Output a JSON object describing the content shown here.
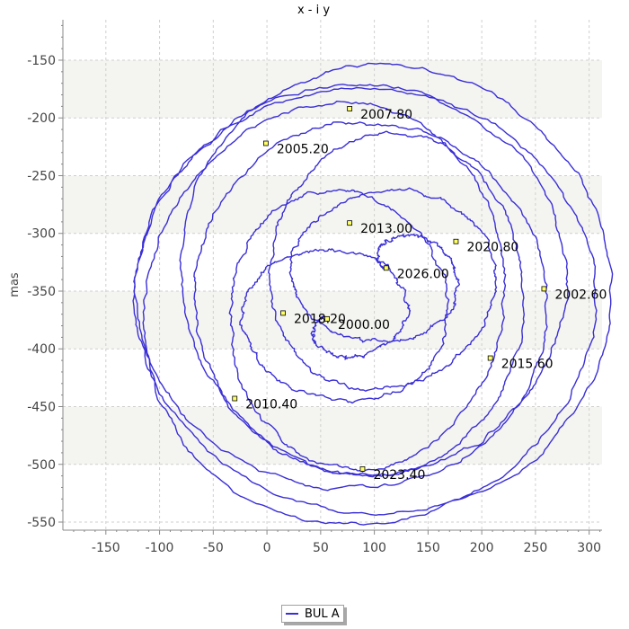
{
  "chart_data": {
    "type": "line",
    "title": "x - i y",
    "xlabel": "",
    "ylabel": "mas",
    "xlim": [
      -190,
      312
    ],
    "ylim": [
      -557,
      -115
    ],
    "x_ticks": [
      -150,
      -100,
      -50,
      0,
      50,
      100,
      150,
      200,
      250,
      300
    ],
    "y_ticks": [
      -550,
      -500,
      -450,
      -400,
      -350,
      -300,
      -250,
      -200,
      -150
    ],
    "grid": true,
    "bands": [
      [
        -200,
        -150
      ],
      [
        -300,
        -250
      ],
      [
        -400,
        -350
      ],
      [
        -500,
        -450
      ]
    ],
    "legend": {
      "placement": "bottom",
      "entries": [
        "BUL A"
      ]
    },
    "series": [
      {
        "name": "BUL A",
        "color": "#3a2fd6",
        "orbit": {
          "center_start": [
            62,
            -374
          ],
          "center_end": [
            120,
            -333
          ],
          "start_year": 2000.0,
          "end_year": 2026.0,
          "period_years": 2.6,
          "start_angle_deg": 170
        }
      }
    ],
    "annotations": [
      {
        "label": "2000.00",
        "x": 56,
        "y": -374
      },
      {
        "label": "2002.60",
        "x": 258,
        "y": -348
      },
      {
        "label": "2005.20",
        "x": -1,
        "y": -222
      },
      {
        "label": "2007.80",
        "x": 77,
        "y": -192
      },
      {
        "label": "2010.40",
        "x": -30,
        "y": -443
      },
      {
        "label": "2013.00",
        "x": 77,
        "y": -291
      },
      {
        "label": "2015.60",
        "x": 208,
        "y": -408
      },
      {
        "label": "2018.20",
        "x": 15,
        "y": -369
      },
      {
        "label": "2020.80",
        "x": 176,
        "y": -307
      },
      {
        "label": "2023.40",
        "x": 89,
        "y": -504
      },
      {
        "label": "2026.00",
        "x": 111,
        "y": -330
      }
    ]
  }
}
